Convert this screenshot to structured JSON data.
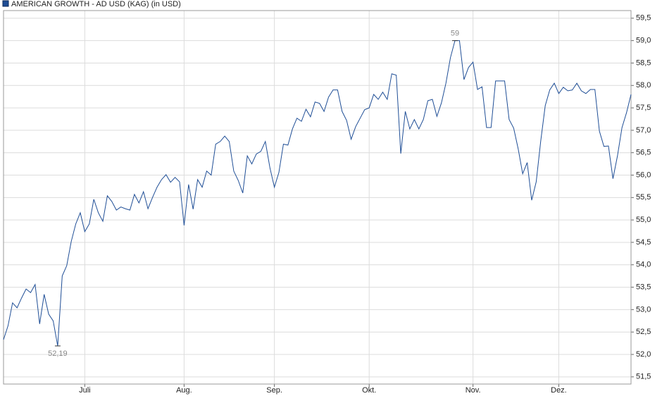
{
  "chart_data": {
    "type": "line",
    "series": [
      {
        "name": "AMERICAN GROWTH - AD USD (KAG) (in USD)",
        "color": "#1f4e96",
        "values": [
          52.33,
          52.64,
          53.15,
          53.04,
          53.26,
          53.46,
          53.38,
          53.56,
          52.68,
          53.34,
          52.9,
          52.75,
          52.19,
          53.75,
          53.98,
          54.52,
          54.91,
          55.16,
          54.74,
          54.91,
          55.46,
          55.16,
          54.97,
          55.54,
          55.41,
          55.22,
          55.29,
          55.25,
          55.22,
          55.57,
          55.38,
          55.63,
          55.25,
          55.5,
          55.73,
          55.9,
          56.01,
          55.84,
          55.95,
          55.85,
          54.88,
          55.79,
          55.24,
          55.9,
          55.73,
          56.09,
          56.0,
          56.69,
          56.75,
          56.87,
          56.75,
          56.09,
          55.88,
          55.6,
          56.43,
          56.25,
          56.47,
          56.53,
          56.75,
          56.17,
          55.73,
          56.06,
          56.69,
          56.67,
          57.03,
          57.27,
          57.2,
          57.47,
          57.3,
          57.63,
          57.6,
          57.42,
          57.74,
          57.9,
          57.9,
          57.42,
          57.22,
          56.8,
          57.08,
          57.27,
          57.46,
          57.5,
          57.8,
          57.69,
          57.85,
          57.69,
          58.26,
          58.23,
          56.48,
          57.42,
          57.03,
          57.24,
          57.03,
          57.24,
          57.66,
          57.69,
          57.31,
          57.61,
          58.05,
          58.62,
          59.0,
          59.0,
          58.13,
          58.4,
          58.52,
          57.91,
          57.97,
          57.06,
          57.06,
          58.1,
          58.1,
          58.1,
          57.24,
          57.05,
          56.59,
          56.03,
          56.28,
          55.44,
          55.85,
          56.76,
          57.55,
          57.9,
          58.05,
          57.82,
          57.96,
          57.88,
          57.9,
          58.05,
          57.88,
          57.82,
          57.91,
          57.91,
          56.98,
          56.64,
          56.65,
          55.92,
          56.43,
          57.06,
          57.39,
          57.8
        ]
      }
    ],
    "xlim": [
      0,
      139
    ],
    "xticks": [
      {
        "value": 18,
        "label": "Juli"
      },
      {
        "value": 40,
        "label": "Aug."
      },
      {
        "value": 60,
        "label": "Sep."
      },
      {
        "value": 81,
        "label": "Okt."
      },
      {
        "value": 104,
        "label": "Nov."
      },
      {
        "value": 123,
        "label": "Dez."
      }
    ],
    "ylim": [
      51.34,
      59.67
    ],
    "yticks": [
      {
        "value": 51.5,
        "label": "51,5"
      },
      {
        "value": 52,
        "label": "52,0"
      },
      {
        "value": 52.5,
        "label": "52,5"
      },
      {
        "value": 53,
        "label": "53,0"
      },
      {
        "value": 53.5,
        "label": "53,5"
      },
      {
        "value": 54,
        "label": "54,0"
      },
      {
        "value": 54.5,
        "label": "54,5"
      },
      {
        "value": 55,
        "label": "55,0"
      },
      {
        "value": 55.5,
        "label": "55,5"
      },
      {
        "value": 56,
        "label": "56,0"
      },
      {
        "value": 56.5,
        "label": "56,5"
      },
      {
        "value": 57,
        "label": "57,0"
      },
      {
        "value": 57.5,
        "label": "57,5"
      },
      {
        "value": 58,
        "label": "58,0"
      },
      {
        "value": 58.5,
        "label": "58,5"
      },
      {
        "value": 59,
        "label": "59,0"
      },
      {
        "value": 59.5,
        "label": "59,5"
      }
    ],
    "annotations": [
      {
        "value": 52.19,
        "label": "52,19"
      },
      {
        "value": 59,
        "label": "59"
      }
    ],
    "grid": true
  }
}
